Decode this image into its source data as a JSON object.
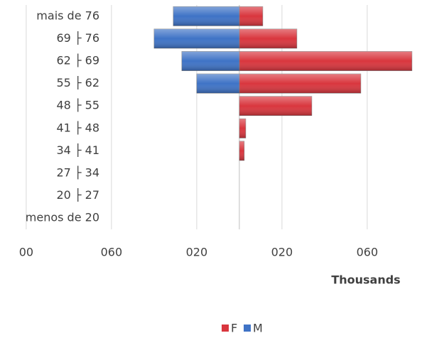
{
  "chart_data": {
    "type": "pyramid",
    "categories": [
      "mais de 76",
      "69 ├ 76",
      "62 ├ 69",
      "55 ├ 62",
      "48 ├ 55",
      "41 ├ 48",
      "34 ├ 41",
      "27 ├ 34",
      "20 ├ 27",
      "menos de 20"
    ],
    "series": [
      {
        "name": "F",
        "color": "#d9363e",
        "values": [
          0.011,
          0.027,
          0.081,
          0.057,
          0.034,
          0.003,
          0.0023,
          0,
          0,
          0
        ]
      },
      {
        "name": "M",
        "color": "#3f73c6",
        "values": [
          -0.031,
          -0.04,
          -0.027,
          -0.02,
          0,
          0,
          0,
          0,
          0,
          0
        ]
      }
    ],
    "xlim": [
      -0.1123,
      0.0857
    ],
    "xticks": [
      {
        "value": -0.1,
        "label": "00"
      },
      {
        "value": -0.06,
        "label": "060"
      },
      {
        "value": -0.02,
        "label": "020"
      },
      {
        "value": 0.02,
        "label": "020"
      },
      {
        "value": 0.06,
        "label": "060"
      }
    ],
    "x_axis_label": "Thousands",
    "grid": true,
    "legend": "bottom"
  }
}
